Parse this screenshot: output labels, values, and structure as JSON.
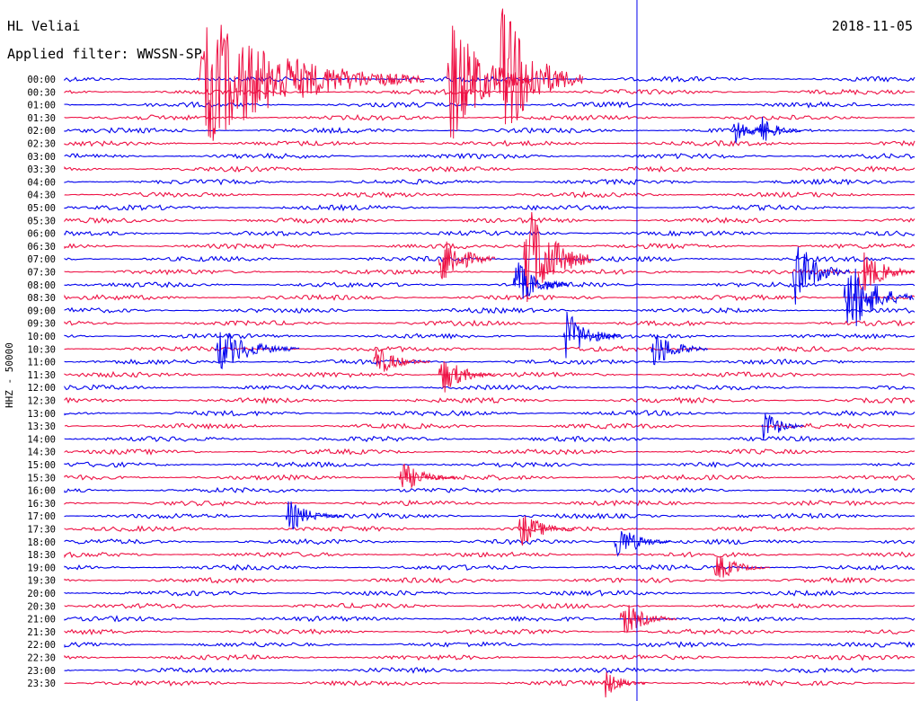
{
  "header": {
    "station": "HL Veliai",
    "date": "2018-11-05",
    "filter_label": "Applied filter: WWSSN-SP"
  },
  "chart_data": {
    "type": "line",
    "title": "HL Veliai",
    "subtitle": "Applied filter: WWSSN-SP",
    "channel": "HHZ - 50000",
    "date": "2018-11-05",
    "rows": [
      "00:00",
      "00:30",
      "01:00",
      "01:30",
      "02:00",
      "02:30",
      "03:00",
      "03:30",
      "04:00",
      "04:30",
      "05:00",
      "05:30",
      "06:00",
      "06:30",
      "07:00",
      "07:30",
      "08:00",
      "08:30",
      "09:00",
      "09:30",
      "10:00",
      "10:30",
      "11:00",
      "11:30",
      "12:00",
      "12:30",
      "13:00",
      "13:30",
      "14:00",
      "14:30",
      "15:00",
      "15:30",
      "16:00",
      "16:30",
      "17:00",
      "17:30",
      "18:00",
      "18:30",
      "19:00",
      "19:30",
      "20:00",
      "20:30",
      "21:00",
      "21:30",
      "22:00",
      "22:30",
      "23:00",
      "23:30"
    ],
    "row_duration_minutes": 30,
    "colors": [
      "#0000ee",
      "#ee1144"
    ],
    "marker_minute": 20.2,
    "events": [
      {
        "row": 0,
        "minute": 4.7,
        "amplitude": 85,
        "duration_min": 8,
        "color": "#ee1144"
      },
      {
        "row": 0,
        "minute": 13.5,
        "amplitude": 90,
        "duration_min": 3,
        "color": "#ee1144"
      },
      {
        "row": 0,
        "minute": 15.3,
        "amplitude": 100,
        "duration_min": 3,
        "color": "#ee1144"
      },
      {
        "row": 4,
        "minute": 23.5,
        "amplitude": 22,
        "duration_min": 1.5,
        "color": "#0000ee"
      },
      {
        "row": 4,
        "minute": 24.5,
        "amplitude": 20,
        "duration_min": 1.5,
        "color": "#0000ee"
      },
      {
        "row": 14,
        "minute": 16.2,
        "amplitude": 80,
        "duration_min": 2.5,
        "color": "#ee1144"
      },
      {
        "row": 14,
        "minute": 13.2,
        "amplitude": 40,
        "duration_min": 2,
        "color": "#ee1144"
      },
      {
        "row": 15,
        "minute": 28,
        "amplitude": 35,
        "duration_min": 3,
        "color": "#ee1144"
      },
      {
        "row": 16,
        "minute": 15.8,
        "amplitude": 35,
        "duration_min": 2,
        "color": "#0000ee"
      },
      {
        "row": 15,
        "minute": 25.7,
        "amplitude": 45,
        "duration_min": 2,
        "color": "#0000ee"
      },
      {
        "row": 17,
        "minute": 27.5,
        "amplitude": 55,
        "duration_min": 3,
        "color": "#0000ee"
      },
      {
        "row": 20,
        "minute": 17.6,
        "amplitude": 35,
        "duration_min": 2,
        "color": "#0000ee"
      },
      {
        "row": 21,
        "minute": 5.3,
        "amplitude": 30,
        "duration_min": 3,
        "color": "#0000ee"
      },
      {
        "row": 21,
        "minute": 20.7,
        "amplitude": 28,
        "duration_min": 2,
        "color": "#0000ee"
      },
      {
        "row": 22,
        "minute": 10.9,
        "amplitude": 22,
        "duration_min": 2,
        "color": "#ee1144"
      },
      {
        "row": 23,
        "minute": 13.2,
        "amplitude": 28,
        "duration_min": 2,
        "color": "#ee1144"
      },
      {
        "row": 27,
        "minute": 24.6,
        "amplitude": 25,
        "duration_min": 1.5,
        "color": "#0000ee"
      },
      {
        "row": 31,
        "minute": 11.8,
        "amplitude": 22,
        "duration_min": 2,
        "color": "#ee1144"
      },
      {
        "row": 34,
        "minute": 7.8,
        "amplitude": 22,
        "duration_min": 2,
        "color": "#0000ee"
      },
      {
        "row": 35,
        "minute": 16,
        "amplitude": 25,
        "duration_min": 2,
        "color": "#ee1144"
      },
      {
        "row": 36,
        "minute": 19.4,
        "amplitude": 25,
        "duration_min": 2,
        "color": "#0000ee"
      },
      {
        "row": 38,
        "minute": 22.9,
        "amplitude": 20,
        "duration_min": 2,
        "color": "#ee1144"
      },
      {
        "row": 42,
        "minute": 19.6,
        "amplitude": 25,
        "duration_min": 2,
        "color": "#ee1144"
      },
      {
        "row": 47,
        "minute": 19.0,
        "amplitude": 20,
        "duration_min": 1.5,
        "color": "#ee1144"
      }
    ]
  }
}
